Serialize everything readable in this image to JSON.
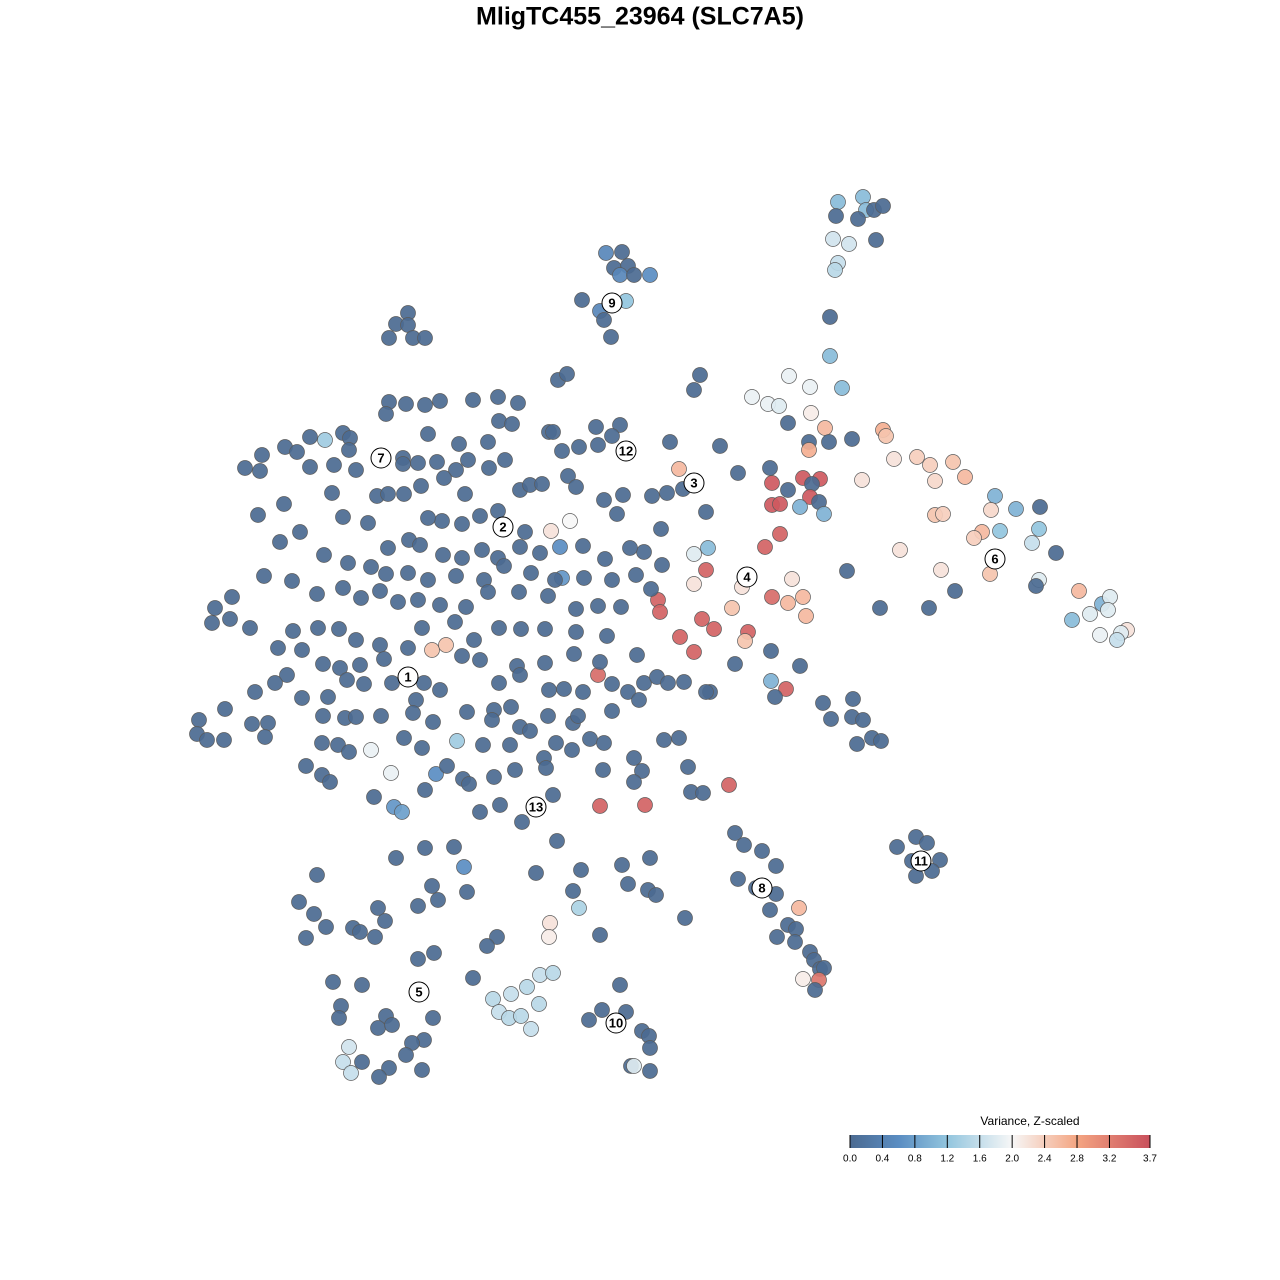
{
  "chart_data": {
    "type": "scatter",
    "title": "MligTC455_23964 (SLC7A5)",
    "xlim": [
      0,
      1280
    ],
    "ylim": [
      1280,
      0
    ],
    "clim": [
      0,
      3.7
    ],
    "colormap": [
      [
        0,
        "#4b6a91"
      ],
      [
        0.6,
        "#5a8dc2"
      ],
      [
        1.2,
        "#92c5de"
      ],
      [
        2,
        "#f7f7f7"
      ],
      [
        2.8,
        "#f4a582"
      ],
      [
        3.7,
        "#c9505c"
      ]
    ],
    "x": [
      838,
      863,
      866,
      874,
      883,
      836,
      858,
      833,
      849,
      876,
      838,
      835,
      830,
      830,
      842,
      606,
      622,
      614,
      628,
      620,
      634,
      650,
      582,
      626,
      600,
      604,
      611,
      408,
      396,
      408,
      389,
      413,
      425,
      558,
      567,
      700,
      694,
      789,
      810,
      752,
      768,
      779,
      811,
      788,
      825,
      852,
      809,
      829,
      883,
      886,
      894,
      917,
      930,
      953,
      935,
      965,
      862,
      809,
      770,
      803,
      820,
      812,
      788,
      772,
      772,
      780,
      810,
      819,
      800,
      824,
      780,
      765,
      995,
      1040,
      1016,
      991,
      935,
      943,
      982,
      974,
      1000,
      1039,
      1032,
      1056,
      900,
      941,
      990,
      1039,
      1036,
      955,
      1079,
      1102,
      1110,
      1108,
      1090,
      1072,
      1127,
      1121,
      1117,
      1100,
      880,
      929,
      847,
      706,
      694,
      694,
      708,
      742,
      792,
      772,
      788,
      803,
      806,
      658,
      660,
      732,
      702,
      714,
      680,
      748,
      745,
      694,
      735,
      771,
      800,
      771,
      786,
      775,
      710,
      598,
      729,
      600,
      645,
      679,
      670,
      720,
      738,
      706,
      683,
      661,
      652,
      667,
      644,
      636,
      662,
      651,
      596,
      620,
      612,
      598,
      579,
      623,
      549,
      553,
      562,
      518,
      498,
      473,
      440,
      425,
      406,
      389,
      386,
      499,
      512,
      488,
      459,
      428,
      310,
      325,
      343,
      350,
      349,
      285,
      297,
      262,
      245,
      260,
      310,
      334,
      356,
      403,
      403,
      418,
      437,
      456,
      468,
      489,
      505,
      284,
      258,
      332,
      377,
      388,
      404,
      421,
      444,
      465,
      520,
      530,
      542,
      568,
      576,
      604,
      617,
      551,
      570,
      560,
      562,
      525,
      498,
      480,
      462,
      442,
      428,
      409,
      420,
      443,
      462,
      482,
      498,
      520,
      540,
      583,
      605,
      630,
      368,
      343,
      280,
      300,
      324,
      388,
      371,
      386,
      348,
      408,
      428,
      456,
      484,
      504,
      531,
      555,
      584,
      612,
      264,
      292,
      317,
      343,
      361,
      380,
      398,
      418,
      440,
      466,
      488,
      519,
      548,
      576,
      598,
      621,
      215,
      232,
      212,
      230,
      250,
      432,
      446,
      408,
      380,
      356,
      339,
      318,
      293,
      278,
      302,
      323,
      340,
      360,
      384,
      422,
      455,
      474,
      499,
      521,
      545,
      576,
      607,
      637,
      600,
      574,
      545,
      517,
      480,
      462,
      424,
      440,
      392,
      364,
      347,
      287,
      275,
      255,
      302,
      328,
      416,
      499,
      520,
      549,
      564,
      583,
      612,
      628,
      644,
      657,
      668,
      684,
      706,
      199,
      197,
      207,
      224,
      225,
      252,
      268,
      265,
      323,
      345,
      356,
      381,
      413,
      433,
      467,
      494,
      492,
      511,
      520,
      548,
      573,
      578,
      612,
      639,
      322,
      338,
      349,
      371,
      404,
      422,
      457,
      483,
      510,
      530,
      556,
      590,
      604,
      664,
      679,
      544,
      546,
      572,
      634,
      306,
      322,
      330,
      391,
      436,
      447,
      463,
      469,
      494,
      515,
      603,
      642,
      688,
      374,
      394,
      402,
      425,
      480,
      500,
      522,
      553,
      691,
      703,
      634,
      735,
      744,
      762,
      776,
      738,
      756,
      776,
      770,
      799,
      788,
      796,
      777,
      795,
      810,
      814,
      820,
      824,
      803,
      819,
      815,
      916,
      927,
      897,
      912,
      940,
      916,
      932,
      823,
      853,
      831,
      852,
      863,
      857,
      872,
      881,
      557,
      396,
      425,
      454,
      464,
      467,
      432,
      438,
      418,
      378,
      385,
      353,
      360,
      375,
      317,
      299,
      314,
      326,
      306,
      536,
      581,
      622,
      650,
      628,
      648,
      656,
      573,
      579,
      600,
      685,
      550,
      549,
      497,
      487,
      473,
      434,
      418,
      333,
      362,
      341,
      339,
      386,
      378,
      392,
      433,
      424,
      412,
      406,
      389,
      379,
      422,
      362,
      349,
      343,
      351,
      540,
      553,
      527,
      511,
      493,
      539,
      499,
      509,
      521,
      531,
      620,
      602,
      626,
      589,
      642,
      649,
      650,
      631,
      634,
      650
    ],
    "y": [
      202,
      197,
      210,
      210,
      206,
      216,
      219,
      239,
      244,
      240,
      263,
      270,
      317,
      356,
      388,
      253,
      252,
      268,
      266,
      275,
      275,
      275,
      300,
      301,
      311,
      320,
      337,
      313,
      324,
      325,
      338,
      338,
      338,
      380,
      374,
      375,
      390,
      376,
      387,
      397,
      404,
      406,
      413,
      423,
      428,
      439,
      442,
      442,
      430,
      436,
      459,
      457,
      465,
      462,
      481,
      477,
      480,
      450,
      468,
      478,
      479,
      484,
      490,
      483,
      505,
      504,
      497,
      502,
      507,
      514,
      534,
      547,
      496,
      507,
      509,
      510,
      515,
      514,
      532,
      538,
      531,
      529,
      543,
      553,
      550,
      570,
      574,
      580,
      586,
      591,
      591,
      604,
      597,
      610,
      614,
      620,
      630,
      633,
      640,
      635,
      608,
      608,
      571,
      570,
      584,
      554,
      548,
      587,
      579,
      597,
      603,
      597,
      616,
      600,
      612,
      608,
      619,
      629,
      637,
      632,
      641,
      652,
      664,
      651,
      666,
      681,
      689,
      697,
      692,
      675,
      785,
      806,
      805,
      469,
      442,
      446,
      473,
      512,
      489,
      529,
      496,
      493,
      552,
      575,
      565,
      589,
      427,
      425,
      436,
      445,
      447,
      495,
      432,
      432,
      451,
      403,
      397,
      400,
      401,
      405,
      404,
      402,
      414,
      421,
      424,
      442,
      444,
      434,
      437,
      440,
      433,
      438,
      450,
      447,
      452,
      455,
      468,
      471,
      467,
      465,
      470,
      458,
      464,
      463,
      462,
      470,
      460,
      468,
      460,
      504,
      515,
      493,
      496,
      494,
      494,
      486,
      478,
      494,
      490,
      485,
      484,
      476,
      487,
      500,
      514,
      531,
      521,
      547,
      578,
      532,
      511,
      516,
      524,
      521,
      518,
      540,
      545,
      555,
      558,
      550,
      558,
      547,
      553,
      546,
      559,
      548,
      523,
      517,
      542,
      532,
      555,
      548,
      567,
      574,
      563,
      573,
      580,
      576,
      580,
      566,
      573,
      580,
      578,
      580,
      576,
      581,
      594,
      588,
      598,
      591,
      602,
      600,
      605,
      607,
      592,
      592,
      596,
      609,
      606,
      607,
      608,
      597,
      623,
      619,
      628,
      650,
      645,
      648,
      645,
      640,
      629,
      628,
      631,
      648,
      650,
      664,
      668,
      665,
      659,
      628,
      622,
      640,
      628,
      629,
      629,
      632,
      636,
      655,
      662,
      654,
      663,
      666,
      660,
      656,
      683,
      690,
      683,
      684,
      680,
      675,
      683,
      692,
      698,
      697,
      700,
      683,
      675,
      690,
      689,
      692,
      684,
      692,
      683,
      677,
      683,
      682,
      692,
      720,
      734,
      740,
      740,
      709,
      724,
      723,
      737,
      716,
      718,
      717,
      716,
      713,
      722,
      712,
      710,
      720,
      707,
      727,
      716,
      723,
      716,
      711,
      700,
      743,
      745,
      752,
      750,
      738,
      748,
      741,
      745,
      745,
      731,
      743,
      739,
      743,
      740,
      738,
      758,
      768,
      750,
      758,
      766,
      775,
      782,
      773,
      774,
      766,
      779,
      784,
      777,
      770,
      770,
      771,
      767,
      797,
      807,
      812,
      790,
      812,
      805,
      822,
      795,
      792,
      793,
      782,
      833,
      845,
      851,
      866,
      879,
      888,
      894,
      910,
      908,
      925,
      929,
      937,
      942,
      952,
      960,
      969,
      968,
      979,
      980,
      990,
      837,
      843,
      847,
      861,
      860,
      876,
      871,
      703,
      699,
      719,
      717,
      720,
      744,
      738,
      741,
      841,
      858,
      848,
      847,
      867,
      892,
      886,
      900,
      906,
      908,
      921,
      928,
      932,
      937,
      875,
      902,
      914,
      927,
      938,
      873,
      870,
      865,
      858,
      884,
      890,
      895,
      891,
      908,
      935,
      918,
      923,
      937,
      937,
      946,
      978,
      953,
      959,
      982,
      985,
      1006,
      1018,
      1016,
      1028,
      1025,
      1018,
      1040,
      1043,
      1055,
      1068,
      1077,
      1070,
      1062,
      1047,
      1062,
      1073,
      975,
      973,
      987,
      994,
      999,
      1004,
      1012,
      1018,
      1016,
      1029,
      985,
      1010,
      1012,
      1020,
      1031,
      1036,
      1048,
      1066,
      1066,
      1071
    ],
    "values": [
      1.1,
      1.1,
      1.1,
      0,
      0,
      0,
      0,
      1.7,
      1.7,
      0,
      1.6,
      1.5,
      0,
      1.1,
      1.1,
      0.5,
      0,
      0,
      0,
      0.5,
      0,
      0.6,
      0,
      1.2,
      0.5,
      0,
      0,
      0,
      0,
      0,
      0,
      0,
      0,
      0,
      0,
      0,
      0,
      1.9,
      1.9,
      1.9,
      1.9,
      1.8,
      2.1,
      0,
      2.6,
      0,
      0,
      0,
      2.7,
      2.5,
      2.2,
      2.4,
      2.4,
      2.5,
      2.3,
      2.6,
      2.2,
      2.7,
      0,
      3.6,
      3.6,
      0,
      0,
      3.6,
      3.6,
      3.6,
      3.6,
      0,
      1,
      1,
      3.5,
      3.5,
      1,
      0,
      1,
      2.3,
      2.5,
      2.4,
      2.6,
      2.4,
      1.2,
      1.2,
      1.6,
      0,
      2.2,
      2.2,
      2.5,
      1.8,
      0,
      0,
      2.6,
      1,
      1.8,
      1.8,
      1.8,
      1.1,
      2.2,
      1.8,
      1.6,
      1.9,
      0,
      0,
      0,
      3.5,
      2.2,
      1.8,
      1.1,
      2.2,
      2.2,
      3.4,
      2.6,
      2.6,
      2.6,
      3.5,
      3.5,
      2.5,
      3.5,
      3.5,
      3.5,
      3.5,
      2.5,
      3.5,
      0,
      0,
      0,
      1,
      3.5,
      0,
      0,
      3.4,
      3.5,
      3.5,
      3.5,
      2.6,
      0,
      0,
      0,
      0,
      0,
      0,
      0,
      0,
      0,
      0,
      0,
      0,
      0,
      0,
      0,
      0,
      0,
      0,
      0,
      0,
      0,
      0,
      0,
      0,
      0,
      0,
      0,
      0,
      0,
      0,
      0,
      0,
      0,
      0,
      0,
      1.3,
      0,
      0,
      0,
      0,
      0,
      0,
      0,
      0,
      0,
      0,
      0,
      0,
      0,
      0,
      0,
      0,
      0,
      0,
      0,
      0,
      0,
      0,
      0,
      0,
      0,
      0,
      0,
      0,
      0,
      0,
      0,
      0,
      0,
      0,
      0,
      2.2,
      2,
      0.6,
      0.7,
      0,
      0,
      0,
      0,
      0,
      0,
      0,
      0,
      0,
      0,
      0,
      0,
      0,
      0,
      0,
      0,
      0,
      0,
      0,
      0,
      0,
      0,
      0,
      0,
      0,
      0,
      0,
      0,
      0,
      0,
      0,
      0,
      0,
      0,
      0,
      0,
      0,
      0,
      0,
      0,
      0,
      0,
      0,
      0,
      0,
      0,
      0,
      0,
      0,
      0,
      0,
      0,
      0,
      0,
      0,
      0,
      2.5,
      2.5,
      0,
      0,
      0,
      0,
      0,
      0,
      0,
      0,
      0,
      0,
      0,
      0,
      0,
      0,
      0,
      0,
      0,
      0,
      0,
      0,
      0,
      0,
      0,
      0,
      0,
      0,
      0,
      0,
      0,
      0,
      0,
      0,
      0,
      0,
      0,
      0,
      0,
      0,
      0,
      0,
      0,
      0,
      0,
      0,
      0,
      0,
      0,
      0,
      0,
      0,
      0,
      0,
      0,
      0,
      0,
      0,
      0,
      0,
      0,
      0,
      0,
      0,
      0,
      0,
      0,
      0,
      0,
      0,
      0,
      0,
      0,
      0,
      0,
      0,
      0,
      0,
      0,
      1.9,
      0,
      0,
      1.3,
      0,
      0,
      0,
      0,
      0,
      0,
      0,
      0,
      0,
      0,
      0,
      0,
      0,
      0,
      0,
      1.9,
      0.6,
      0,
      0,
      0,
      0,
      0,
      0,
      0,
      0,
      0,
      0.7,
      0.8,
      0,
      0,
      0,
      0,
      0,
      0,
      0,
      0,
      0,
      0,
      0,
      0,
      0,
      0,
      0,
      0,
      2.6,
      0,
      0,
      0,
      0,
      0,
      0,
      0,
      0,
      2.1,
      3.3,
      0,
      0,
      0,
      0,
      0,
      0,
      0,
      0,
      0,
      0,
      0,
      0,
      0,
      0,
      0,
      0,
      0,
      0,
      0,
      0,
      0.6,
      0,
      0,
      0,
      0,
      0,
      0,
      0,
      0,
      0,
      0,
      0,
      0,
      0,
      0,
      0,
      0,
      0,
      0,
      0,
      0,
      0,
      0,
      1.4,
      0,
      0,
      2.2,
      2.1,
      0,
      0,
      0,
      0,
      0,
      0,
      0,
      0,
      0,
      0,
      0,
      0,
      0,
      0,
      0,
      0,
      0,
      0,
      0,
      0,
      1.7,
      1.6,
      1.6,
      1.6,
      1.5,
      1.5,
      1.6,
      1.5,
      1.5,
      1.6,
      1.5,
      1.5,
      1.6,
      0,
      0,
      0,
      0,
      0,
      0,
      0,
      0,
      1.8,
      0
    ],
    "cluster_labels": [
      {
        "label": "1",
        "x": 408,
        "y": 677
      },
      {
        "label": "2",
        "x": 503,
        "y": 527
      },
      {
        "label": "3",
        "x": 694,
        "y": 483
      },
      {
        "label": "4",
        "x": 747,
        "y": 577
      },
      {
        "label": "5",
        "x": 419,
        "y": 992
      },
      {
        "label": "6",
        "x": 995,
        "y": 559
      },
      {
        "label": "7",
        "x": 381,
        "y": 458
      },
      {
        "label": "8",
        "x": 762,
        "y": 888
      },
      {
        "label": "9",
        "x": 612,
        "y": 303
      },
      {
        "label": "10",
        "x": 616,
        "y": 1023
      },
      {
        "label": "11",
        "x": 921,
        "y": 861
      },
      {
        "label": "12",
        "x": 626,
        "y": 451
      },
      {
        "label": "13",
        "x": 536,
        "y": 807
      }
    ],
    "colorbar": {
      "title": "Variance, Z-scaled",
      "ticks": [
        {
          "value": 0,
          "label": "0.0"
        },
        0.4,
        0.8,
        1.2,
        1.6,
        {
          "value": 2,
          "label": "2.0"
        },
        2.4,
        2.8,
        3.2,
        3.7
      ]
    }
  }
}
